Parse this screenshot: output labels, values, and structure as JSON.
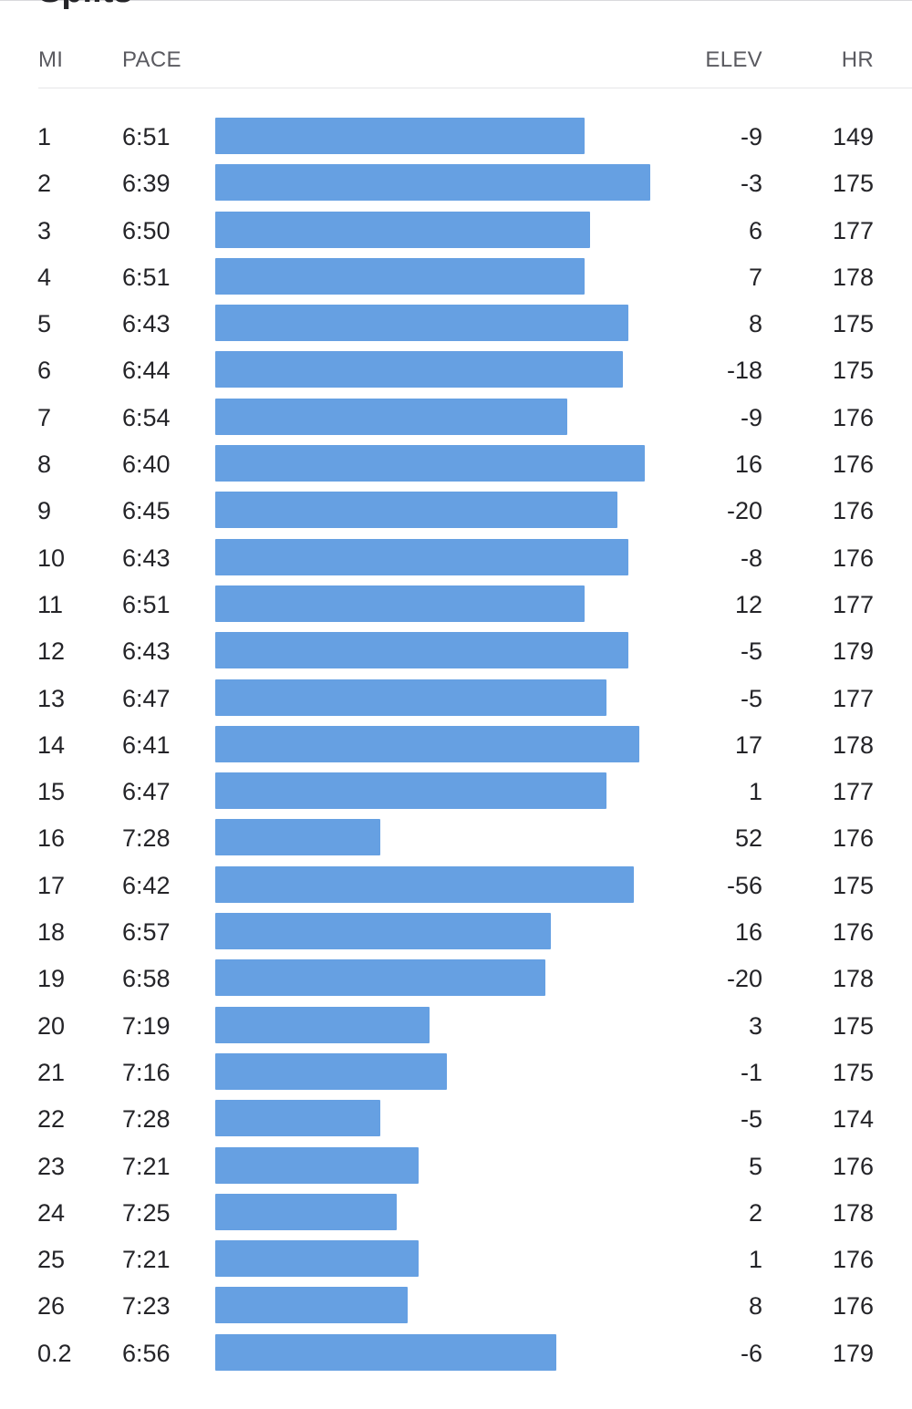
{
  "page": {
    "title_fragment": "Splits",
    "accent_color": "#66a0e2"
  },
  "header": {
    "mi": "MI",
    "pace": "PACE",
    "elev": "ELEV",
    "hr": "HR"
  },
  "rows": [
    {
      "mi": "1",
      "pace": "6:51",
      "elev": "-9",
      "hr": "149",
      "pace_seconds": 411
    },
    {
      "mi": "2",
      "pace": "6:39",
      "elev": "-3",
      "hr": "175",
      "pace_seconds": 399
    },
    {
      "mi": "3",
      "pace": "6:50",
      "elev": "6",
      "hr": "177",
      "pace_seconds": 410
    },
    {
      "mi": "4",
      "pace": "6:51",
      "elev": "7",
      "hr": "178",
      "pace_seconds": 411
    },
    {
      "mi": "5",
      "pace": "6:43",
      "elev": "8",
      "hr": "175",
      "pace_seconds": 403
    },
    {
      "mi": "6",
      "pace": "6:44",
      "elev": "-18",
      "hr": "175",
      "pace_seconds": 404
    },
    {
      "mi": "7",
      "pace": "6:54",
      "elev": "-9",
      "hr": "176",
      "pace_seconds": 414
    },
    {
      "mi": "8",
      "pace": "6:40",
      "elev": "16",
      "hr": "176",
      "pace_seconds": 400
    },
    {
      "mi": "9",
      "pace": "6:45",
      "elev": "-20",
      "hr": "176",
      "pace_seconds": 405
    },
    {
      "mi": "10",
      "pace": "6:43",
      "elev": "-8",
      "hr": "176",
      "pace_seconds": 403
    },
    {
      "mi": "11",
      "pace": "6:51",
      "elev": "12",
      "hr": "177",
      "pace_seconds": 411
    },
    {
      "mi": "12",
      "pace": "6:43",
      "elev": "-5",
      "hr": "179",
      "pace_seconds": 403
    },
    {
      "mi": "13",
      "pace": "6:47",
      "elev": "-5",
      "hr": "177",
      "pace_seconds": 407
    },
    {
      "mi": "14",
      "pace": "6:41",
      "elev": "17",
      "hr": "178",
      "pace_seconds": 401
    },
    {
      "mi": "15",
      "pace": "6:47",
      "elev": "1",
      "hr": "177",
      "pace_seconds": 407
    },
    {
      "mi": "16",
      "pace": "7:28",
      "elev": "52",
      "hr": "176",
      "pace_seconds": 448
    },
    {
      "mi": "17",
      "pace": "6:42",
      "elev": "-56",
      "hr": "175",
      "pace_seconds": 402
    },
    {
      "mi": "18",
      "pace": "6:57",
      "elev": "16",
      "hr": "176",
      "pace_seconds": 417
    },
    {
      "mi": "19",
      "pace": "6:58",
      "elev": "-20",
      "hr": "178",
      "pace_seconds": 418
    },
    {
      "mi": "20",
      "pace": "7:19",
      "elev": "3",
      "hr": "175",
      "pace_seconds": 439
    },
    {
      "mi": "21",
      "pace": "7:16",
      "elev": "-1",
      "hr": "175",
      "pace_seconds": 436
    },
    {
      "mi": "22",
      "pace": "7:28",
      "elev": "-5",
      "hr": "174",
      "pace_seconds": 448
    },
    {
      "mi": "23",
      "pace": "7:21",
      "elev": "5",
      "hr": "176",
      "pace_seconds": 441
    },
    {
      "mi": "24",
      "pace": "7:25",
      "elev": "2",
      "hr": "178",
      "pace_seconds": 445
    },
    {
      "mi": "25",
      "pace": "7:21",
      "elev": "1",
      "hr": "176",
      "pace_seconds": 441
    },
    {
      "mi": "26",
      "pace": "7:23",
      "elev": "8",
      "hr": "176",
      "pace_seconds": 443
    },
    {
      "mi": "0.2",
      "pace": "6:56",
      "elev": "-6",
      "hr": "179",
      "pace_seconds": 416
    }
  ]
}
